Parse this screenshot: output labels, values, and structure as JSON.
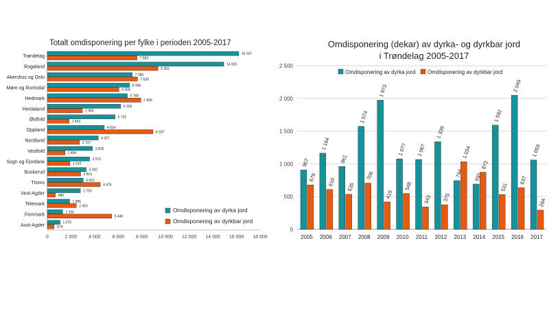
{
  "chart_data": [
    {
      "type": "bar",
      "orientation": "horizontal",
      "title": "Totalt omdisponering  per fylke i perioden 2005-2017",
      "categories": [
        "Trøndelag",
        "Rogaland",
        "Akershus og Oslo",
        "Møre og Romsdal",
        "Hedmark",
        "Hordaland",
        "Østfold",
        "Oppland",
        "Nordland",
        "Vestfold",
        "Sogn og Fjordane",
        "Buskerud",
        "Troms",
        "Vest-Agder",
        "Telemark",
        "Finnmark",
        "Aust-Agder"
      ],
      "series": [
        {
          "name": "Omdisponering av dyrka jord",
          "color": "#17929a",
          "values": [
            16197,
            14926,
            7180,
            6956,
            6768,
            6203,
            5726,
            4814,
            4307,
            3825,
            3573,
            3282,
            3031,
            2793,
            1885,
            1296,
            1075
          ],
          "labels": [
            "16 197",
            "14 926",
            "7 180",
            "6 956",
            "6 768",
            "6 203",
            "5 726",
            "4 814",
            "4 307",
            "3 825",
            "3 573",
            "3 282",
            "3 031",
            "2 793",
            "1 885",
            "1 296",
            "1 075"
          ]
        },
        {
          "name": "Omdisponering av dyrkbar jord",
          "color": "#e55b13",
          "values": [
            7583,
            9355,
            7630,
            6058,
            7909,
            2966,
            1843,
            8937,
            2727,
            1494,
            1910,
            2816,
            4475,
            680,
            2453,
            5440,
            574
          ],
          "labels": [
            "7 583",
            "9 355",
            "7 630",
            "6 058",
            "7 909",
            "2 966",
            "1 843",
            "8 937",
            "2 727",
            "1 494",
            "1 910",
            "2 816",
            "4 475",
            "680",
            "2 453",
            "5 440",
            "574"
          ]
        }
      ],
      "xlim": [
        0,
        18000
      ],
      "xticks": [
        0,
        2000,
        4000,
        6000,
        8000,
        10000,
        12000,
        14000,
        16000,
        18000
      ],
      "xtick_labels": [
        "0",
        "2 000",
        "4 000",
        "6 000",
        "8 000",
        "10 000",
        "12 000",
        "14 000",
        "16 000",
        "18 000"
      ],
      "grid": false,
      "legend": "bottom-right"
    },
    {
      "type": "bar",
      "title": "Omdisponering  (dekar) av dyrka- og dyrkbar jord",
      "subtitle": "i Trøndelag 2005-2017",
      "categories": [
        "2005",
        "2006",
        "2007",
        "2008",
        "2009",
        "2010",
        "2011",
        "2012",
        "2013",
        "2014",
        "2015",
        "2016",
        "2017"
      ],
      "series": [
        {
          "name": "Omdisponering av dyrka jord",
          "color": "#17929a",
          "values": [
            907,
            1164,
            961,
            1574,
            1973,
            1077,
            1067,
            1339,
            744,
            691,
            1592,
            2049,
            1059
          ],
          "labels": [
            "907",
            "1 164",
            "961",
            "1 574",
            "1 973",
            "1 077",
            "1 067",
            "1 339",
            "744",
            "691",
            "1 592",
            "2 049",
            "1 059"
          ]
        },
        {
          "name": "Omdisponering av dyrkbar jord",
          "color": "#e55b13",
          "values": [
            679,
            610,
            535,
            706,
            419,
            548,
            343,
            375,
            1034,
            872,
            531,
            637,
            294
          ],
          "labels": [
            "679",
            "610",
            "535",
            "706",
            "419",
            "548",
            "343",
            "375",
            "1 034",
            "872",
            "531",
            "637",
            "294"
          ]
        }
      ],
      "ylim": [
        0,
        2500
      ],
      "yticks": [
        0,
        500,
        1000,
        1500,
        2000,
        2500
      ],
      "ytick_labels": [
        "0",
        "500",
        "1 000",
        "1 500",
        "2 000",
        "2 500"
      ],
      "grid": true,
      "legend": "top-right"
    }
  ]
}
